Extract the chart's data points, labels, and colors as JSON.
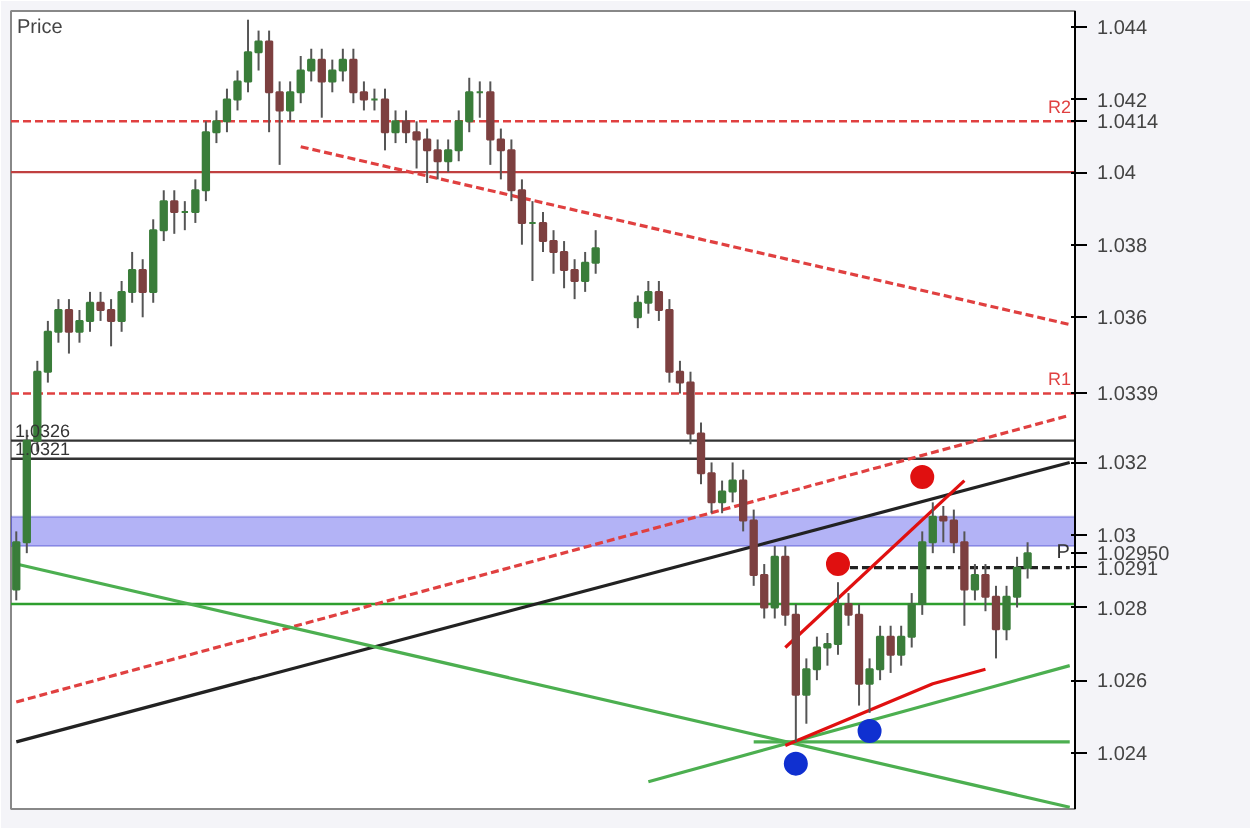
{
  "chart_data": {
    "type": "candlestick",
    "ylabel": "Price",
    "categories": [
      null,
      null,
      null,
      null,
      null,
      null,
      null,
      null,
      null,
      null,
      null,
      null,
      null,
      null,
      null,
      null,
      null,
      null,
      null,
      null,
      null,
      null,
      null,
      null,
      null,
      null,
      null,
      null,
      null,
      null,
      null,
      null,
      null,
      null,
      null,
      null,
      null,
      null,
      null,
      null,
      null,
      null,
      null,
      null,
      null,
      null,
      null,
      null,
      null,
      null,
      null,
      null,
      null,
      null,
      null,
      null,
      null,
      null,
      null,
      null,
      null,
      null,
      null,
      null,
      null,
      null,
      null,
      null,
      null,
      null,
      null,
      null,
      null,
      null,
      null,
      null,
      null,
      null,
      null,
      null,
      null,
      null,
      null,
      null,
      null,
      null,
      null,
      null,
      null,
      null,
      null,
      null,
      null,
      null,
      null,
      null,
      null,
      null,
      null,
      null,
      null
    ],
    "ohlc": [
      [
        1.0285,
        1.0301,
        1.0282,
        1.0298
      ],
      [
        1.0298,
        1.0329,
        1.0295,
        1.0326
      ],
      [
        1.0326,
        1.0348,
        1.0323,
        1.0345
      ],
      [
        1.0345,
        1.0359,
        1.0342,
        1.0356
      ],
      [
        1.0356,
        1.0365,
        1.0353,
        1.0362
      ],
      [
        1.0362,
        1.0365,
        1.035,
        1.0356
      ],
      [
        1.0356,
        1.0362,
        1.0353,
        1.0359
      ],
      [
        1.0359,
        1.0367,
        1.0356,
        1.0364
      ],
      [
        1.0364,
        1.0367,
        1.0359,
        1.0362
      ],
      [
        1.0362,
        1.0365,
        1.0352,
        1.0359
      ],
      [
        1.0359,
        1.037,
        1.0356,
        1.0367
      ],
      [
        1.0367,
        1.0378,
        1.0364,
        1.0373
      ],
      [
        1.0373,
        1.0376,
        1.036,
        1.0367
      ],
      [
        1.0367,
        1.0387,
        1.0364,
        1.0384
      ],
      [
        1.0384,
        1.0395,
        1.0381,
        1.0392
      ],
      [
        1.0392,
        1.0395,
        1.0383,
        1.0389
      ],
      [
        1.0389,
        1.0392,
        1.0384,
        1.0389
      ],
      [
        1.0389,
        1.0398,
        1.0386,
        1.0395
      ],
      [
        1.0395,
        1.0414,
        1.0392,
        1.0411
      ],
      [
        1.0411,
        1.0417,
        1.0408,
        1.0414
      ],
      [
        1.0414,
        1.0423,
        1.0411,
        1.042
      ],
      [
        1.042,
        1.0428,
        1.0417,
        1.0425
      ],
      [
        1.0425,
        1.0442,
        1.0422,
        1.0433
      ],
      [
        1.0433,
        1.0439,
        1.0428,
        1.0436
      ],
      [
        1.0436,
        1.0439,
        1.0411,
        1.0422
      ],
      [
        1.0422,
        1.0425,
        1.0402,
        1.0417
      ],
      [
        1.0417,
        1.0425,
        1.0414,
        1.0422
      ],
      [
        1.0422,
        1.0432,
        1.0419,
        1.0428
      ],
      [
        1.0428,
        1.0434,
        1.0425,
        1.0431
      ],
      [
        1.0431,
        1.0434,
        1.0415,
        1.0425
      ],
      [
        1.0425,
        1.0431,
        1.0422,
        1.0428
      ],
      [
        1.0428,
        1.0434,
        1.0425,
        1.0431
      ],
      [
        1.0431,
        1.0434,
        1.0419,
        1.0422
      ],
      [
        1.0422,
        1.0425,
        1.0417,
        1.042
      ],
      [
        1.042,
        1.0423,
        1.0417,
        1.042
      ],
      [
        1.042,
        1.0423,
        1.0406,
        1.0411
      ],
      [
        1.0411,
        1.0417,
        1.0408,
        1.0414
      ],
      [
        1.0414,
        1.0417,
        1.0408,
        1.0411
      ],
      [
        1.0411,
        1.0414,
        1.0401,
        1.0409
      ],
      [
        1.0409,
        1.0412,
        1.0397,
        1.0406
      ],
      [
        1.0406,
        1.0409,
        1.0398,
        1.0403
      ],
      [
        1.0403,
        1.0409,
        1.04,
        1.0406
      ],
      [
        1.0406,
        1.0417,
        1.0403,
        1.0414
      ],
      [
        1.0414,
        1.0426,
        1.0411,
        1.0422
      ],
      [
        1.0422,
        1.0425,
        1.0415,
        1.0422
      ],
      [
        1.0422,
        1.0425,
        1.0402,
        1.0409
      ],
      [
        1.0409,
        1.0412,
        1.0398,
        1.0406
      ],
      [
        1.0406,
        1.0409,
        1.0392,
        1.0395
      ],
      [
        1.0395,
        1.0398,
        1.038,
        1.0386
      ],
      [
        1.0386,
        1.0392,
        1.037,
        1.0386
      ],
      [
        1.0386,
        1.0389,
        1.0378,
        1.0381
      ],
      [
        1.0381,
        1.0384,
        1.0372,
        1.0378
      ],
      [
        1.0378,
        1.0381,
        1.0368,
        1.0373
      ],
      [
        1.0373,
        1.0376,
        1.0365,
        1.037
      ],
      [
        1.037,
        1.0378,
        1.0367,
        1.0375
      ],
      [
        1.0375,
        1.0384,
        1.0372,
        1.0379
      ],
      null,
      null,
      null,
      [
        1.036,
        1.0366,
        1.0357,
        1.0364
      ],
      [
        1.0364,
        1.037,
        1.0361,
        1.0367
      ],
      [
        1.0367,
        1.037,
        1.0359,
        1.0362
      ],
      [
        1.0362,
        1.0365,
        1.0342,
        1.0345
      ],
      [
        1.0345,
        1.0348,
        1.0339,
        1.0342
      ],
      [
        1.0342,
        1.0345,
        1.0325,
        1.0328
      ],
      [
        1.0328,
        1.0331,
        1.0314,
        1.0317
      ],
      [
        1.0317,
        1.032,
        1.0306,
        1.0309
      ],
      [
        1.0309,
        1.0315,
        1.0306,
        1.0312
      ],
      [
        1.0312,
        1.032,
        1.0309,
        1.0315
      ],
      [
        1.0315,
        1.0318,
        1.0301,
        1.0304
      ],
      [
        1.0304,
        1.0307,
        1.0286,
        1.0289
      ],
      [
        1.0289,
        1.0292,
        1.0277,
        1.028
      ],
      [
        1.028,
        1.0297,
        1.0277,
        1.0294
      ],
      [
        1.0294,
        1.0297,
        1.0275,
        1.0278
      ],
      [
        1.0278,
        1.0281,
        1.0243,
        1.0256
      ],
      [
        1.0256,
        1.0266,
        1.0248,
        1.0263
      ],
      [
        1.0263,
        1.0272,
        1.026,
        1.0269
      ],
      [
        1.0269,
        1.0273,
        1.0264,
        1.027
      ],
      [
        1.027,
        1.0287,
        1.0267,
        1.0281
      ],
      [
        1.0281,
        1.0284,
        1.0275,
        1.0278
      ],
      [
        1.0278,
        1.0281,
        1.0253,
        1.0259
      ],
      [
        1.0259,
        1.0266,
        1.0251,
        1.0263
      ],
      [
        1.0263,
        1.0275,
        1.026,
        1.0272
      ],
      [
        1.0272,
        1.0275,
        1.0262,
        1.0267
      ],
      [
        1.0267,
        1.0275,
        1.0264,
        1.0272
      ],
      [
        1.0272,
        1.0284,
        1.0269,
        1.0281
      ],
      [
        1.0281,
        1.0301,
        1.0278,
        1.0298
      ],
      [
        1.0298,
        1.0309,
        1.0295,
        1.0305
      ],
      [
        1.0305,
        1.0308,
        1.0298,
        1.0304
      ],
      [
        1.0304,
        1.0307,
        1.0295,
        1.0298
      ],
      [
        1.0298,
        1.0301,
        1.0275,
        1.0285
      ],
      [
        1.0285,
        1.0292,
        1.0282,
        1.0289
      ],
      [
        1.0289,
        1.0292,
        1.0279,
        1.0283
      ],
      [
        1.0283,
        1.0286,
        1.0266,
        1.0274
      ],
      [
        1.0274,
        1.0286,
        1.0271,
        1.0283
      ],
      [
        1.0283,
        1.0294,
        1.028,
        1.0291
      ],
      [
        1.0291,
        1.0298,
        1.0288,
        1.0295
      ],
      null,
      null,
      null,
      null
    ],
    "ylim": [
      1.02245,
      1.04444
    ],
    "yticks": [
      1.024,
      1.026,
      1.028,
      1.03,
      1.032,
      1.036,
      1.038,
      1.04,
      1.042,
      1.044,
      {
        "value": 1.0414,
        "label": "1.0414"
      },
      {
        "value": 1.0339,
        "label": "1.0339"
      },
      {
        "value": 1.0291,
        "label": "1.0291"
      },
      {
        "value": 1.0295,
        "label": "1.02950"
      }
    ],
    "grid": false,
    "series": [
      {
        "type": "line",
        "color": "#e04040",
        "line_style": "dashed",
        "values": [
          null,
          null,
          null,
          null,
          null,
          null,
          null,
          null,
          null,
          null,
          null,
          null,
          null,
          null,
          null,
          null,
          null,
          null,
          null,
          null,
          null,
          null,
          null,
          null,
          null,
          null,
          null,
          1.0407,
          null,
          null,
          null,
          null,
          null,
          null,
          null,
          null,
          null,
          null,
          null,
          null,
          null,
          null,
          null,
          null,
          null,
          null,
          null,
          null,
          null,
          null,
          null,
          null,
          null,
          null,
          null,
          null,
          null,
          null,
          null,
          null,
          null,
          null,
          null,
          null,
          null,
          null,
          null,
          null,
          null,
          null,
          null,
          null,
          null,
          null,
          null,
          null,
          null,
          null,
          null,
          null,
          null,
          null,
          null,
          null,
          null,
          null,
          null,
          null,
          null,
          null,
          null,
          null,
          null,
          null,
          null,
          null,
          null,
          null,
          null,
          null,
          1.0358
        ]
      },
      {
        "type": "line",
        "color": "#e04040",
        "line_style": "dashed",
        "values": [
          1.0254,
          null,
          null,
          null,
          null,
          null,
          null,
          null,
          null,
          null,
          null,
          null,
          null,
          null,
          null,
          null,
          null,
          null,
          null,
          null,
          null,
          null,
          null,
          null,
          null,
          null,
          null,
          null,
          null,
          null,
          null,
          null,
          null,
          null,
          null,
          null,
          null,
          null,
          null,
          null,
          null,
          null,
          null,
          null,
          null,
          null,
          null,
          null,
          null,
          null,
          null,
          null,
          null,
          null,
          null,
          null,
          null,
          null,
          null,
          null,
          null,
          null,
          null,
          null,
          null,
          null,
          null,
          null,
          null,
          null,
          null,
          null,
          null,
          null,
          null,
          null,
          null,
          null,
          null,
          null,
          null,
          null,
          null,
          null,
          null,
          null,
          null,
          null,
          null,
          null,
          null,
          null,
          null,
          null,
          null,
          null,
          null,
          null,
          null,
          null,
          1.0333
        ]
      },
      {
        "type": "line",
        "color": "#222222",
        "line_style": "solid",
        "values": [
          1.0243,
          null,
          null,
          null,
          null,
          null,
          null,
          null,
          null,
          null,
          null,
          null,
          null,
          null,
          null,
          null,
          null,
          null,
          null,
          null,
          null,
          null,
          null,
          null,
          null,
          null,
          null,
          null,
          null,
          null,
          null,
          null,
          null,
          null,
          null,
          null,
          null,
          null,
          null,
          null,
          null,
          null,
          null,
          null,
          null,
          null,
          null,
          null,
          null,
          null,
          null,
          null,
          null,
          null,
          null,
          null,
          null,
          null,
          null,
          null,
          null,
          null,
          null,
          null,
          null,
          null,
          null,
          null,
          null,
          null,
          null,
          null,
          null,
          null,
          null,
          null,
          null,
          null,
          null,
          null,
          null,
          null,
          null,
          null,
          null,
          null,
          null,
          null,
          null,
          null,
          null,
          null,
          null,
          null,
          null,
          null,
          null,
          null,
          null,
          null,
          1.032
        ]
      },
      {
        "type": "line",
        "color": "#4caf50",
        "line_style": "solid",
        "values": [
          1.0292,
          null,
          null,
          null,
          null,
          null,
          null,
          null,
          null,
          null,
          null,
          null,
          null,
          null,
          null,
          null,
          null,
          null,
          null,
          null,
          null,
          null,
          null,
          null,
          null,
          null,
          null,
          null,
          null,
          null,
          null,
          null,
          null,
          null,
          null,
          null,
          null,
          null,
          null,
          null,
          null,
          null,
          null,
          null,
          null,
          null,
          null,
          null,
          null,
          null,
          null,
          null,
          null,
          null,
          null,
          null,
          null,
          null,
          null,
          null,
          null,
          null,
          null,
          null,
          null,
          null,
          null,
          null,
          null,
          null,
          null,
          null,
          null,
          null,
          null,
          null,
          null,
          null,
          null,
          null,
          null,
          null,
          null,
          null,
          null,
          null,
          null,
          null,
          null,
          null,
          null,
          null,
          null,
          null,
          null,
          null,
          null,
          null,
          null,
          null,
          1.0225
        ]
      },
      {
        "type": "line",
        "color": "#4caf50",
        "line_style": "solid",
        "values": [
          null,
          null,
          null,
          null,
          null,
          null,
          null,
          null,
          null,
          null,
          null,
          null,
          null,
          null,
          null,
          null,
          null,
          null,
          null,
          null,
          null,
          null,
          null,
          null,
          null,
          null,
          null,
          null,
          null,
          null,
          null,
          null,
          null,
          null,
          null,
          null,
          null,
          null,
          null,
          null,
          null,
          null,
          null,
          null,
          null,
          null,
          null,
          null,
          null,
          null,
          null,
          null,
          null,
          null,
          null,
          null,
          null,
          null,
          null,
          null,
          1.0232,
          null,
          null,
          null,
          null,
          null,
          null,
          null,
          null,
          null,
          null,
          null,
          null,
          null,
          null,
          null,
          null,
          null,
          null,
          null,
          null,
          null,
          null,
          null,
          null,
          null,
          null,
          null,
          null,
          null,
          null,
          null,
          null,
          null,
          null,
          null,
          null,
          null,
          null,
          null,
          1.0264
        ]
      },
      {
        "type": "line",
        "color": "#4caf50",
        "line_style": "solid",
        "values": [
          null,
          null,
          null,
          null,
          null,
          null,
          null,
          null,
          null,
          null,
          null,
          null,
          null,
          null,
          null,
          null,
          null,
          null,
          null,
          null,
          null,
          null,
          null,
          null,
          null,
          null,
          null,
          null,
          null,
          null,
          null,
          null,
          null,
          null,
          null,
          null,
          null,
          null,
          null,
          null,
          null,
          null,
          null,
          null,
          null,
          null,
          null,
          null,
          null,
          null,
          null,
          null,
          null,
          null,
          null,
          null,
          null,
          null,
          null,
          null,
          null,
          null,
          null,
          null,
          null,
          null,
          null,
          null,
          null,
          null,
          1.0243,
          null,
          null,
          null,
          null,
          null,
          null,
          null,
          null,
          null,
          null,
          null,
          null,
          null,
          null,
          null,
          null,
          null,
          null,
          null,
          null,
          null,
          null,
          null,
          null,
          null,
          null,
          null,
          null,
          null,
          1.0243
        ]
      },
      {
        "type": "line",
        "name": "P",
        "color": "#222222",
        "line_style": "dashed",
        "values": [
          null,
          null,
          null,
          null,
          null,
          null,
          null,
          null,
          null,
          null,
          null,
          null,
          null,
          null,
          null,
          null,
          null,
          null,
          null,
          null,
          null,
          null,
          null,
          null,
          null,
          null,
          null,
          null,
          null,
          null,
          null,
          null,
          null,
          null,
          null,
          null,
          null,
          null,
          null,
          null,
          null,
          null,
          null,
          null,
          null,
          null,
          null,
          null,
          null,
          null,
          null,
          null,
          null,
          null,
          null,
          null,
          null,
          null,
          null,
          null,
          null,
          null,
          null,
          null,
          null,
          null,
          null,
          null,
          null,
          null,
          null,
          null,
          null,
          null,
          null,
          null,
          null,
          null,
          1.0291,
          null,
          null,
          null,
          null,
          null,
          null,
          null,
          null,
          null,
          null,
          null,
          null,
          null,
          null,
          null,
          null,
          null,
          null,
          null,
          null,
          null,
          1.0291
        ]
      },
      {
        "type": "line",
        "color": "#e01010",
        "line_style": "solid",
        "values": [
          null,
          null,
          null,
          null,
          null,
          null,
          null,
          null,
          null,
          null,
          null,
          null,
          null,
          null,
          null,
          null,
          null,
          null,
          null,
          null,
          null,
          null,
          null,
          null,
          null,
          null,
          null,
          null,
          null,
          null,
          null,
          null,
          null,
          null,
          null,
          null,
          null,
          null,
          null,
          null,
          null,
          null,
          null,
          null,
          null,
          null,
          null,
          null,
          null,
          null,
          null,
          null,
          null,
          null,
          null,
          null,
          null,
          null,
          null,
          null,
          null,
          null,
          null,
          null,
          null,
          null,
          null,
          null,
          null,
          null,
          null,
          null,
          null,
          1.0269,
          null,
          null,
          null,
          null,
          null,
          null,
          null,
          null,
          null,
          null,
          null,
          null,
          null,
          null,
          null,
          null,
          1.0315,
          null,
          null,
          null,
          null,
          null,
          null,
          null,
          null,
          null,
          null
        ]
      },
      {
        "type": "line",
        "color": "#e01010",
        "line_style": "solid",
        "values": [
          null,
          null,
          null,
          null,
          null,
          null,
          null,
          null,
          null,
          null,
          null,
          null,
          null,
          null,
          null,
          null,
          null,
          null,
          null,
          null,
          null,
          null,
          null,
          null,
          null,
          null,
          null,
          null,
          null,
          null,
          null,
          null,
          null,
          null,
          null,
          null,
          null,
          null,
          null,
          null,
          null,
          null,
          null,
          null,
          null,
          null,
          null,
          null,
          null,
          null,
          null,
          null,
          null,
          null,
          null,
          null,
          null,
          null,
          null,
          null,
          null,
          null,
          null,
          null,
          null,
          null,
          null,
          null,
          null,
          null,
          null,
          null,
          null,
          1.0242,
          null,
          null,
          null,
          null,
          null,
          null,
          null,
          null,
          null,
          null,
          null,
          null,
          null,
          1.0259,
          null,
          null,
          null,
          null,
          1.0263,
          null,
          null,
          null,
          null,
          null,
          null,
          null,
          null
        ]
      },
      {
        "type": "scatter",
        "marker": "circle",
        "color": "#e01010",
        "values": [
          null,
          null,
          null,
          null,
          null,
          null,
          null,
          null,
          null,
          null,
          null,
          null,
          null,
          null,
          null,
          null,
          null,
          null,
          null,
          null,
          null,
          null,
          null,
          null,
          null,
          null,
          null,
          null,
          null,
          null,
          null,
          null,
          null,
          null,
          null,
          null,
          null,
          null,
          null,
          null,
          null,
          null,
          null,
          null,
          null,
          null,
          null,
          null,
          null,
          null,
          null,
          null,
          null,
          null,
          null,
          null,
          null,
          null,
          null,
          null,
          null,
          null,
          null,
          null,
          null,
          null,
          null,
          null,
          null,
          null,
          null,
          null,
          null,
          null,
          null,
          null,
          null,
          null,
          1.0292,
          null,
          null,
          null,
          null,
          null,
          null,
          null,
          1.0316,
          null,
          null,
          null,
          null,
          null,
          null,
          null,
          null,
          null,
          null,
          null,
          null,
          null,
          null
        ]
      },
      {
        "type": "scatter",
        "marker": "circle",
        "color": "#1030d0",
        "values": [
          null,
          null,
          null,
          null,
          null,
          null,
          null,
          null,
          null,
          null,
          null,
          null,
          null,
          null,
          null,
          null,
          null,
          null,
          null,
          null,
          null,
          null,
          null,
          null,
          null,
          null,
          null,
          null,
          null,
          null,
          null,
          null,
          null,
          null,
          null,
          null,
          null,
          null,
          null,
          null,
          null,
          null,
          null,
          null,
          null,
          null,
          null,
          null,
          null,
          null,
          null,
          null,
          null,
          null,
          null,
          null,
          null,
          null,
          null,
          null,
          null,
          null,
          null,
          null,
          null,
          null,
          null,
          null,
          null,
          null,
          null,
          null,
          null,
          null,
          1.0237,
          null,
          null,
          null,
          null,
          null,
          null,
          1.0246,
          null,
          null,
          null,
          null,
          null,
          null,
          null,
          null,
          null,
          null,
          null,
          null,
          null,
          null,
          null,
          null,
          null,
          null,
          null
        ]
      }
    ],
    "ref_lines": [
      {
        "axis": "y",
        "value": 1.04,
        "color": "#c04040",
        "line_style": "solid"
      },
      {
        "axis": "y",
        "value": 1.0414,
        "label": "R2",
        "color": "#e04040",
        "line_style": "dashed"
      },
      {
        "axis": "y",
        "value": 1.0339,
        "label": "R1",
        "color": "#e04040",
        "line_style": "dashed"
      },
      {
        "axis": "y",
        "value": 1.0326,
        "label": "1.0326",
        "color": "#333333",
        "line_style": "solid"
      },
      {
        "axis": "y",
        "value": 1.0321,
        "label": "1.0321",
        "color": "#333333",
        "line_style": "solid"
      },
      {
        "axis": "y",
        "value": 1.0281,
        "color": "#2e9e2e",
        "line_style": "solid"
      }
    ],
    "bands": [
      {
        "axis": "y",
        "from": 1.0297,
        "to": 1.0305,
        "color": "#8080f0"
      }
    ]
  }
}
